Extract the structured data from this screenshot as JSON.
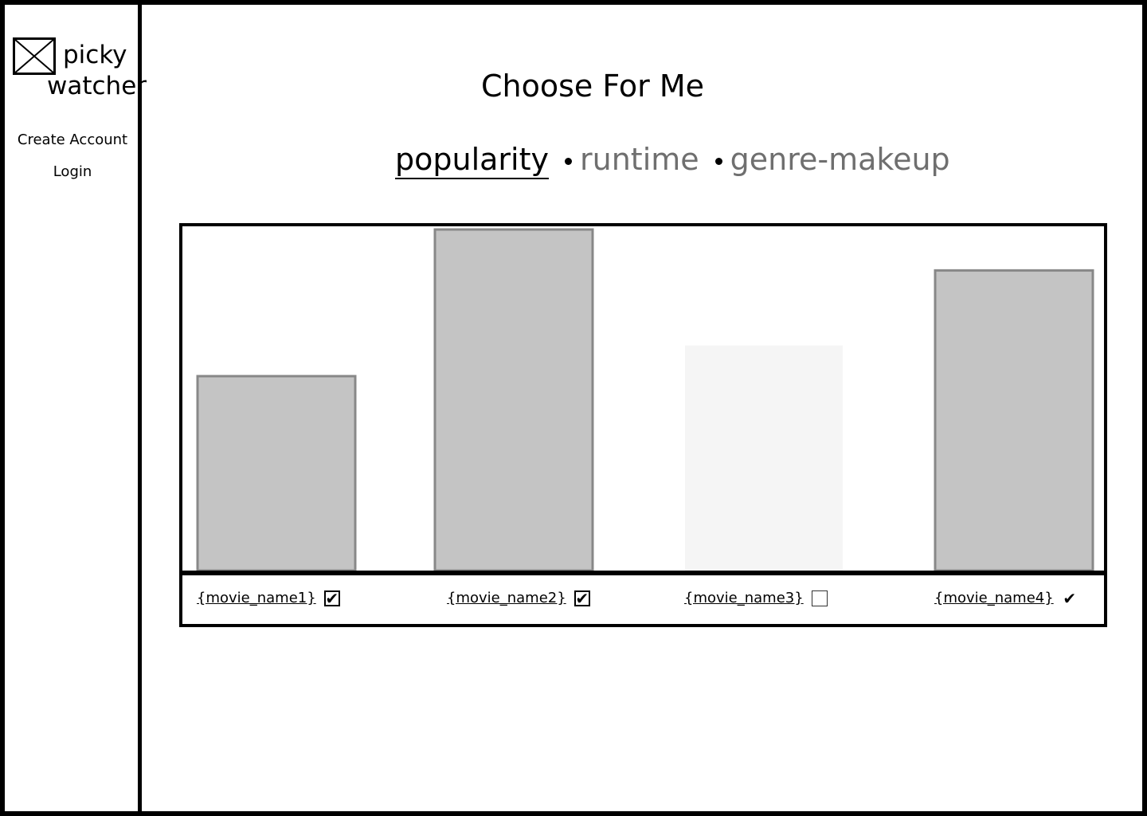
{
  "app": {
    "logo_line1": "picky",
    "logo_line2": "watcher",
    "logo_icon": "image-placeholder-icon"
  },
  "sidebar": {
    "create_account": "Create Account",
    "login": "Login"
  },
  "main": {
    "title": "Choose For Me",
    "tabs": [
      {
        "label": "popularity",
        "active": true
      },
      {
        "label": "runtime",
        "active": false
      },
      {
        "label": "genre-makeup",
        "active": false
      }
    ]
  },
  "chart_data": {
    "type": "bar",
    "title": "",
    "xlabel": "",
    "ylabel": "",
    "ylim": [
      0,
      100
    ],
    "categories": [
      "{movie_name1}",
      "{movie_name2}",
      "{movie_name3}",
      "{movie_name4}"
    ],
    "values": [
      57,
      100,
      66,
      88
    ],
    "selected": [
      true,
      true,
      false,
      true
    ],
    "colors": {
      "bar_fill": "#c4c4c4",
      "bar_stroke": "#888888",
      "bar_unselected_fill": "#f5f5f5"
    }
  }
}
